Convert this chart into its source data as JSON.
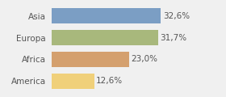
{
  "categories": [
    "Asia",
    "Europa",
    "Africa",
    "America"
  ],
  "values": [
    32.6,
    31.7,
    23.0,
    12.6
  ],
  "labels": [
    "32,6%",
    "31,7%",
    "23,0%",
    "12,6%"
  ],
  "bar_colors": [
    "#7b9ec4",
    "#a8b87c",
    "#d4a06e",
    "#f0d07a"
  ],
  "background_color": "#f0f0f0",
  "xlim": [
    0,
    44
  ],
  "bar_height": 0.72,
  "label_fontsize": 7.5,
  "tick_fontsize": 7.5,
  "label_color": "#555555",
  "tick_color": "#555555"
}
